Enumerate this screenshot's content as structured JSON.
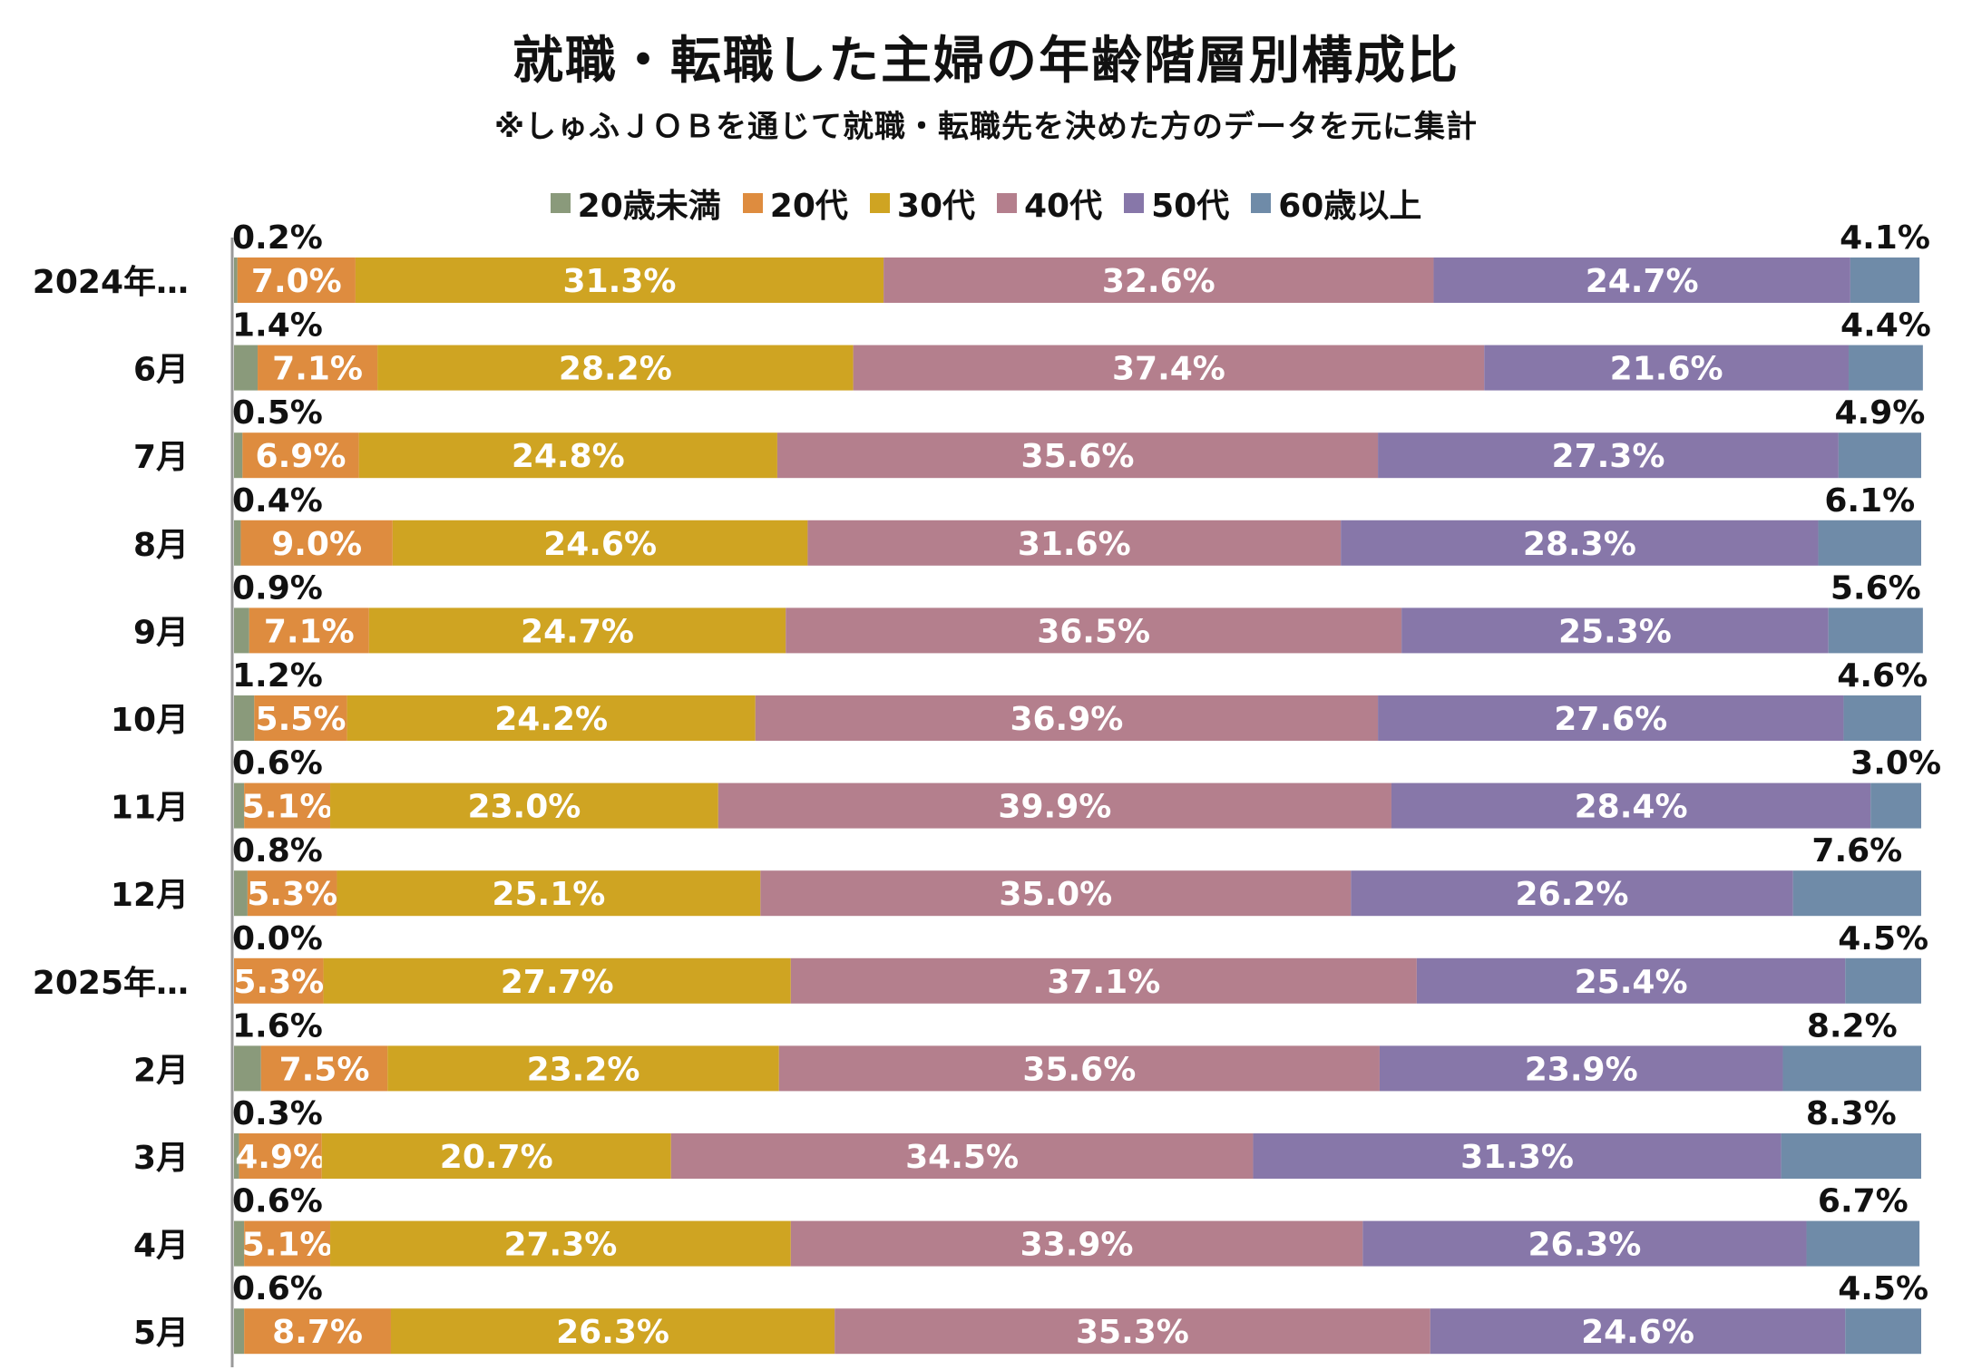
{
  "title": "就職・転職した主婦の年齢階層別構成比",
  "subtitle": "※しゅふＪＯＢを通じて就職・転職先を決めた方のデータを元に集計",
  "colors": {
    "under20": "#8a9a7b",
    "20s": "#de8c3f",
    "30s": "#cfa422",
    "40s": "#b47f8d",
    "50s": "#8777a9",
    "60plus": "#6f8ba8"
  },
  "legend": [
    {
      "label": "20歳未満",
      "color": "#8a9a7b"
    },
    {
      "label": "20代",
      "color": "#de8c3f"
    },
    {
      "label": "30代",
      "color": "#cfa422"
    },
    {
      "label": "40代",
      "color": "#b47f8d"
    },
    {
      "label": "50代",
      "color": "#8777a9"
    },
    {
      "label": "60歳以上",
      "color": "#6f8ba8"
    }
  ],
  "chart_data": {
    "type": "bar",
    "orientation": "horizontal",
    "stacked": "100%",
    "legend_placement": "top",
    "categories": [
      "2024年…",
      "6月",
      "7月",
      "8月",
      "9月",
      "10月",
      "11月",
      "12月",
      "2025年…",
      "2月",
      "3月",
      "4月",
      "5月"
    ],
    "series": [
      {
        "name": "20歳未満",
        "values": [
          0.2,
          1.4,
          0.5,
          0.4,
          0.9,
          1.2,
          0.6,
          0.8,
          0.0,
          1.6,
          0.3,
          0.6,
          0.6
        ],
        "labels": [
          "0.2%",
          "1.4%",
          "0.5%",
          "0.4%",
          "0.9%",
          "1.2%",
          "0.6%",
          "0.8%",
          "0.0%",
          "1.6%",
          "0.3%",
          "0.6%",
          "0.6%"
        ]
      },
      {
        "name": "20代",
        "values": [
          7.0,
          7.1,
          6.9,
          9.0,
          7.1,
          5.5,
          5.1,
          5.3,
          5.3,
          7.5,
          4.9,
          5.1,
          8.7
        ],
        "labels": [
          "7.0%",
          "7.1%",
          "6.9%",
          "9.0%",
          "7.1%",
          "5.5%",
          "5.1%",
          "5.3%",
          "5.3%",
          "7.5%",
          "4.9%",
          "5.1%",
          "8.7%"
        ]
      },
      {
        "name": "30代",
        "values": [
          31.3,
          28.2,
          24.8,
          24.6,
          24.7,
          24.2,
          23.0,
          25.1,
          27.7,
          23.2,
          20.7,
          27.3,
          26.3
        ],
        "labels": [
          "31.3%",
          "28.2%",
          "24.8%",
          "24.6%",
          "24.7%",
          "24.2%",
          "23.0%",
          "25.1%",
          "27.7%",
          "23.2%",
          "20.7%",
          "27.3%",
          "26.3%"
        ]
      },
      {
        "name": "40代",
        "values": [
          32.6,
          37.4,
          35.6,
          31.6,
          36.5,
          36.9,
          39.9,
          35.0,
          37.1,
          35.6,
          34.5,
          33.9,
          35.3
        ],
        "labels": [
          "32.6%",
          "37.4%",
          "35.6%",
          "31.6%",
          "36.5%",
          "36.9%",
          "39.9%",
          "35.0%",
          "37.1%",
          "35.6%",
          "34.5%",
          "33.9%",
          "35.3%"
        ]
      },
      {
        "name": "50代",
        "values": [
          24.7,
          21.6,
          27.3,
          28.3,
          25.3,
          27.6,
          28.4,
          26.2,
          25.4,
          23.9,
          31.3,
          26.3,
          24.6
        ],
        "labels": [
          "24.7%",
          "21.6%",
          "27.3%",
          "28.3%",
          "25.3%",
          "27.6%",
          "28.4%",
          "26.2%",
          "25.4%",
          "23.9%",
          "31.3%",
          "26.3%",
          "24.6%"
        ]
      },
      {
        "name": "60歳以上",
        "values": [
          4.1,
          4.4,
          4.9,
          6.1,
          5.6,
          4.6,
          3.0,
          7.6,
          4.5,
          8.2,
          8.3,
          6.7,
          4.5
        ],
        "labels": [
          "4.1%",
          "4.4%",
          "4.9%",
          "6.1%",
          "5.6%",
          "4.6%",
          "3.0%",
          "7.6%",
          "4.5%",
          "8.2%",
          "8.3%",
          "6.7%",
          "4.5%"
        ]
      }
    ],
    "xlim": [
      0,
      100
    ],
    "grid": false
  }
}
